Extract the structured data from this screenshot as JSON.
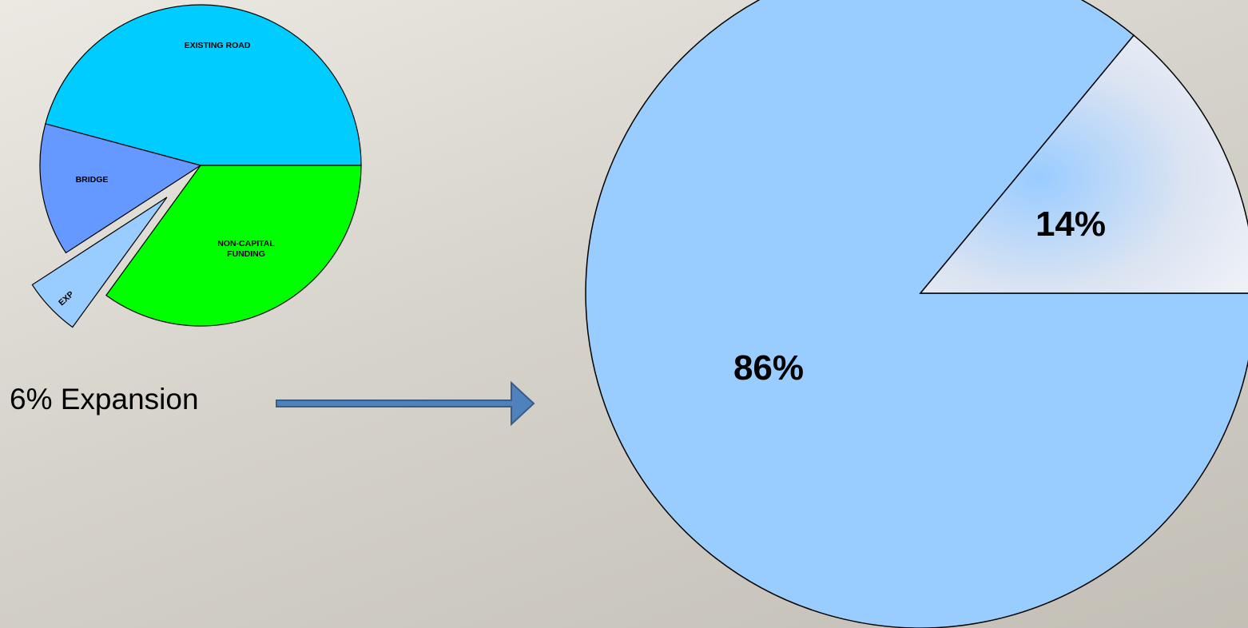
{
  "chart_data": [
    {
      "type": "pie",
      "title": "",
      "slices": [
        {
          "label": "EXISTING ROAD",
          "color": "#00ccff",
          "start_deg": 0,
          "end_deg": 165
        },
        {
          "label": "BRIDGE",
          "color": "#6699ff",
          "start_deg": 165,
          "end_deg": 213
        },
        {
          "label": "EXP",
          "color": "#99ccff",
          "start_deg": 213,
          "end_deg": 234,
          "exploded": true
        },
        {
          "label": "NON-CAPITAL FUNDING",
          "label_lines": [
            "NON-CAPITAL",
            "FUNDING"
          ],
          "color": "#00ff00",
          "start_deg": 234,
          "end_deg": 360
        }
      ]
    },
    {
      "type": "pie",
      "title": "",
      "slices": [
        {
          "label": "14%",
          "value": 14,
          "color": "#dce4f2",
          "accent": "#99ccff"
        },
        {
          "label": "86%",
          "value": 86,
          "color": "#99ccff"
        }
      ]
    }
  ],
  "callout": {
    "text": "6% Expansion",
    "arrow_color": "#4f81bd",
    "arrow_border": "#385d8a"
  }
}
